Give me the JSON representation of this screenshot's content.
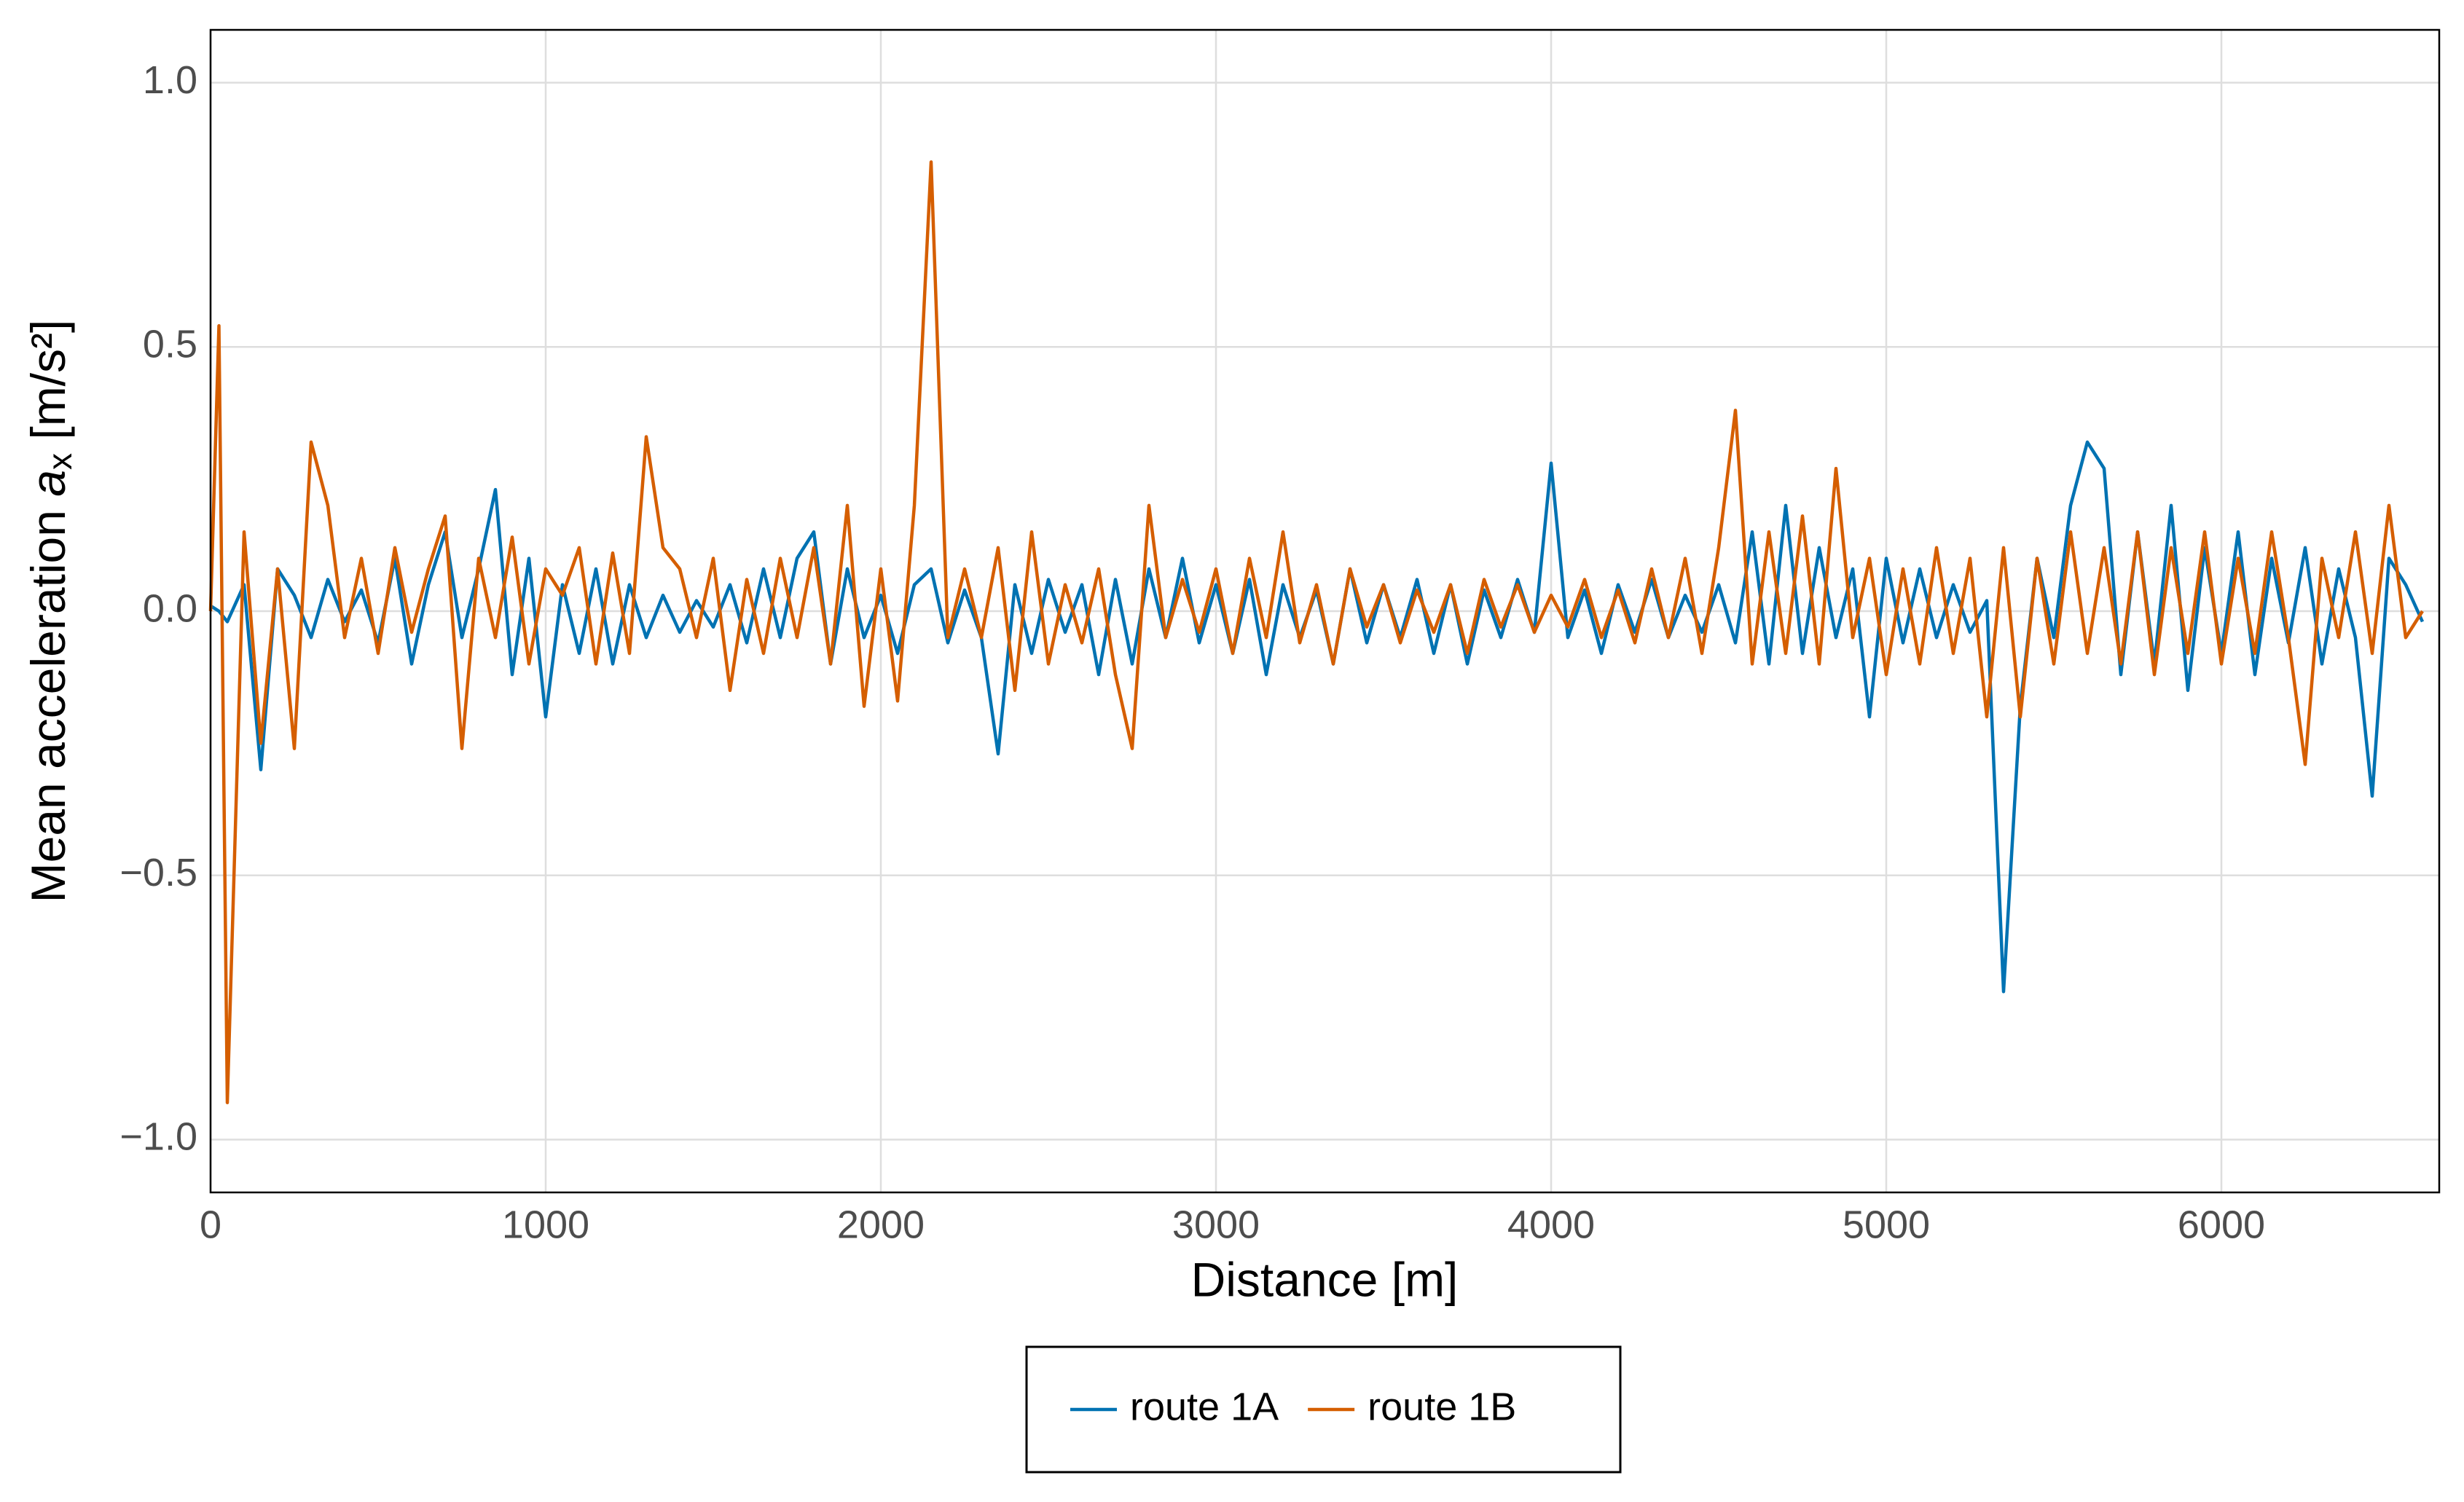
{
  "chart_data": {
    "type": "line",
    "xlabel": "Distance [m]",
    "ylabel": [
      "Mean acceleration ",
      "a",
      "x",
      " [m/s²]"
    ],
    "xlim": [
      0,
      6650
    ],
    "ylim": [
      -1.1,
      1.1
    ],
    "xticks": [
      0,
      1000,
      2000,
      3000,
      4000,
      5000,
      6000
    ],
    "yticks": [
      {
        "value": -1,
        "label": "−1.0"
      },
      {
        "value": -0.5,
        "label": "−0.5"
      },
      {
        "value": 0,
        "label": "0.0"
      },
      {
        "value": 0.5,
        "label": "0.5"
      },
      {
        "value": 1,
        "label": "1.0"
      }
    ],
    "grid": true,
    "legend": "bottom",
    "x": [
      0,
      25,
      50,
      100,
      150,
      200,
      250,
      300,
      350,
      400,
      450,
      500,
      550,
      600,
      650,
      700,
      750,
      800,
      850,
      900,
      950,
      1000,
      1050,
      1100,
      1150,
      1200,
      1250,
      1300,
      1350,
      1400,
      1450,
      1500,
      1550,
      1600,
      1650,
      1700,
      1750,
      1800,
      1850,
      1900,
      1950,
      2000,
      2050,
      2100,
      2150,
      2200,
      2250,
      2300,
      2350,
      2400,
      2450,
      2500,
      2550,
      2600,
      2650,
      2700,
      2750,
      2800,
      2850,
      2900,
      2950,
      3000,
      3050,
      3100,
      3150,
      3200,
      3250,
      3300,
      3350,
      3400,
      3450,
      3500,
      3550,
      3600,
      3650,
      3700,
      3750,
      3800,
      3850,
      3900,
      3950,
      4000,
      4050,
      4100,
      4150,
      4200,
      4250,
      4300,
      4350,
      4400,
      4450,
      4500,
      4550,
      4600,
      4650,
      4700,
      4750,
      4800,
      4850,
      4900,
      4950,
      5000,
      5050,
      5100,
      5150,
      5200,
      5250,
      5300,
      5350,
      5400,
      5450,
      5500,
      5550,
      5600,
      5650,
      5700,
      5750,
      5800,
      5850,
      5900,
      5950,
      6000,
      6050,
      6100,
      6150,
      6200,
      6250,
      6300,
      6350,
      6400,
      6450,
      6500,
      6550,
      6600
    ],
    "series": [
      {
        "name": "route 1A",
        "color": "#0072B2",
        "values": [
          0.01,
          0.0,
          -0.02,
          0.05,
          -0.3,
          0.08,
          0.03,
          -0.05,
          0.06,
          -0.02,
          0.04,
          -0.06,
          0.1,
          -0.1,
          0.05,
          0.15,
          -0.05,
          0.08,
          0.23,
          -0.12,
          0.1,
          -0.2,
          0.05,
          -0.08,
          0.08,
          -0.1,
          0.05,
          -0.05,
          0.03,
          -0.04,
          0.02,
          -0.03,
          0.05,
          -0.06,
          0.08,
          -0.05,
          0.1,
          0.15,
          -0.1,
          0.08,
          -0.05,
          0.03,
          -0.08,
          0.05,
          0.08,
          -0.06,
          0.04,
          -0.05,
          -0.27,
          0.05,
          -0.08,
          0.06,
          -0.04,
          0.05,
          -0.12,
          0.06,
          -0.1,
          0.08,
          -0.05,
          0.1,
          -0.06,
          0.05,
          -0.08,
          0.06,
          -0.12,
          0.05,
          -0.05,
          0.04,
          -0.1,
          0.08,
          -0.06,
          0.05,
          -0.05,
          0.06,
          -0.08,
          0.05,
          -0.1,
          0.04,
          -0.05,
          0.06,
          -0.04,
          0.28,
          -0.05,
          0.04,
          -0.08,
          0.05,
          -0.04,
          0.06,
          -0.05,
          0.03,
          -0.04,
          0.05,
          -0.06,
          0.15,
          -0.1,
          0.2,
          -0.08,
          0.12,
          -0.05,
          0.08,
          -0.2,
          0.1,
          -0.06,
          0.08,
          -0.05,
          0.05,
          -0.04,
          0.02,
          -0.72,
          -0.18,
          0.1,
          -0.05,
          0.2,
          0.32,
          0.27,
          -0.12,
          0.15,
          -0.1,
          0.2,
          -0.15,
          0.12,
          -0.08,
          0.15,
          -0.12,
          0.1,
          -0.06,
          0.12,
          -0.1,
          0.08,
          -0.05,
          -0.35,
          0.1,
          0.05,
          -0.02
        ]
      },
      {
        "name": "route 1B",
        "color": "#D55E00",
        "values": [
          0.0,
          0.54,
          -0.93,
          0.15,
          -0.25,
          0.08,
          -0.26,
          0.32,
          0.2,
          -0.05,
          0.1,
          -0.08,
          0.12,
          -0.04,
          0.08,
          0.18,
          -0.26,
          0.1,
          -0.05,
          0.14,
          -0.1,
          0.08,
          0.03,
          0.12,
          -0.1,
          0.11,
          -0.08,
          0.33,
          0.12,
          0.08,
          -0.05,
          0.1,
          -0.15,
          0.06,
          -0.08,
          0.1,
          -0.05,
          0.12,
          -0.1,
          0.2,
          -0.18,
          0.08,
          -0.17,
          0.2,
          0.85,
          -0.05,
          0.08,
          -0.05,
          0.12,
          -0.15,
          0.15,
          -0.1,
          0.05,
          -0.06,
          0.08,
          -0.12,
          -0.26,
          0.2,
          -0.05,
          0.06,
          -0.04,
          0.08,
          -0.08,
          0.1,
          -0.05,
          0.15,
          -0.06,
          0.05,
          -0.1,
          0.08,
          -0.03,
          0.05,
          -0.06,
          0.04,
          -0.04,
          0.05,
          -0.08,
          0.06,
          -0.03,
          0.05,
          -0.04,
          0.03,
          -0.03,
          0.06,
          -0.05,
          0.04,
          -0.06,
          0.08,
          -0.05,
          0.1,
          -0.08,
          0.12,
          0.38,
          -0.1,
          0.15,
          -0.08,
          0.18,
          -0.1,
          0.27,
          -0.05,
          0.1,
          -0.12,
          0.08,
          -0.1,
          0.12,
          -0.08,
          0.1,
          -0.2,
          0.12,
          -0.2,
          0.1,
          -0.1,
          0.15,
          -0.08,
          0.12,
          -0.1,
          0.15,
          -0.12,
          0.12,
          -0.08,
          0.15,
          -0.1,
          0.1,
          -0.08,
          0.15,
          -0.05,
          -0.29,
          0.1,
          -0.05,
          0.15,
          -0.08,
          0.2,
          -0.05,
          0.0
        ]
      }
    ]
  }
}
